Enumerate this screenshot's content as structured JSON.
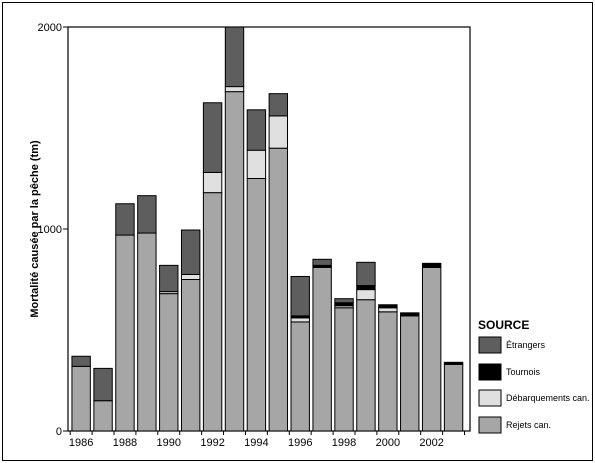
{
  "chart_data": {
    "type": "bar",
    "stacked": true,
    "ylabel": "Mortalité causée par la pêche (tm)",
    "ylim": [
      0,
      2000
    ],
    "yticks": [
      "0",
      "1000",
      "2000"
    ],
    "x": [
      1986,
      1987,
      1988,
      1989,
      1990,
      1991,
      1992,
      1993,
      1994,
      1995,
      1996,
      1997,
      1998,
      1999,
      2000,
      2001,
      2002,
      2003
    ],
    "xtick_labels": [
      "1986",
      "1988",
      "1990",
      "1992",
      "1994",
      "1996",
      "1998",
      "2000",
      "2002"
    ],
    "xtick_years": [
      1986,
      1988,
      1990,
      1992,
      1994,
      1996,
      1998,
      2000,
      2002
    ],
    "legend_title": "SOURCE",
    "legend_position": "right",
    "series": [
      {
        "name": "Rejets can.",
        "color": "#a6a6a6",
        "values": [
          320,
          150,
          970,
          980,
          680,
          750,
          1180,
          1680,
          1250,
          1400,
          540,
          810,
          610,
          650,
          590,
          570,
          810,
          330
        ]
      },
      {
        "name": "Débarquements can.",
        "color": "#e0e0e0",
        "values": [
          0,
          0,
          0,
          0,
          10,
          25,
          100,
          25,
          140,
          160,
          20,
          0,
          10,
          50,
          20,
          0,
          0,
          0
        ]
      },
      {
        "name": "Tournois",
        "color": "#000000",
        "values": [
          0,
          0,
          0,
          0,
          0,
          0,
          0,
          0,
          0,
          0,
          10,
          10,
          15,
          20,
          15,
          15,
          20,
          10
        ]
      },
      {
        "name": "Étrangers",
        "color": "#5e5e5e",
        "values": [
          50,
          160,
          155,
          185,
          130,
          220,
          345,
          295,
          200,
          110,
          195,
          30,
          20,
          115,
          0,
          0,
          0,
          0
        ]
      }
    ]
  }
}
